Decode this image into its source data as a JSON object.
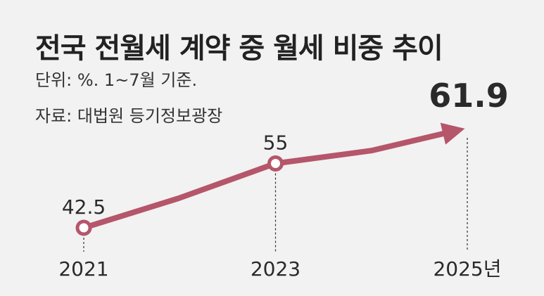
{
  "title": "전국 전월세 계약 중 월세 비중 추이",
  "subtitle": "단위: %. 1~7월 기준.",
  "source": "자료: 대법원 등기정보광장",
  "colors": {
    "line": "#b5566a",
    "highlight": "#b5566a",
    "text": "#2a2a2a",
    "background": "#f2f2f2"
  },
  "chart_data": {
    "type": "line",
    "x": [
      2021,
      2022,
      2023,
      2024,
      2025
    ],
    "values": [
      42.5,
      48.3,
      55,
      57.5,
      61.9
    ],
    "labeled_points": [
      {
        "x_label": "2021",
        "value_label": "42.5",
        "index": 0
      },
      {
        "x_label": "2023",
        "value_label": "55",
        "index": 2
      },
      {
        "x_label": "2025년",
        "value_label": "61.9",
        "index": 4,
        "highlight": true
      }
    ],
    "xlabel": "",
    "ylabel": "",
    "grid": false,
    "legend": "none"
  }
}
